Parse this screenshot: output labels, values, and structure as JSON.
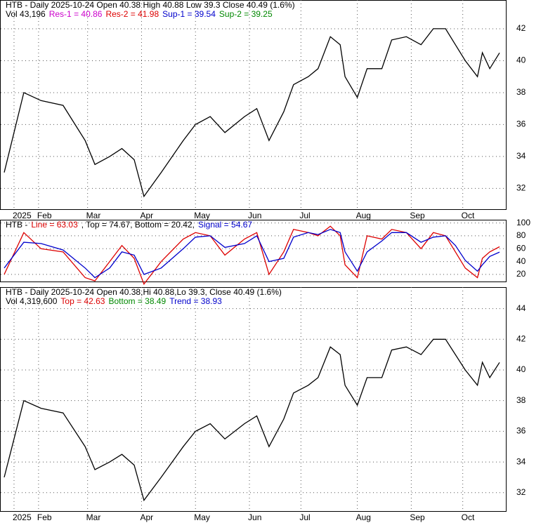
{
  "chart_data": [
    {
      "type": "line",
      "legend_lines": [
        [
          {
            "text": "HTB - Daily 2025-10-24 Open 40.38  High 40.88  Low 39.3  Close 40.49 (1.6%)",
            "color": "#000000"
          }
        ],
        [
          {
            "text": "Vol 43,196",
            "color": "#000000"
          },
          {
            "text": "Res-1 = 40.86",
            "color": "#cc00cc"
          },
          {
            "text": "Res-2 = 41.98",
            "color": "#dd0000"
          },
          {
            "text": "Sup-1 = 39.54",
            "color": "#0000cc"
          },
          {
            "text": "Sup-2 = 39.25",
            "color": "#008800"
          }
        ]
      ],
      "x": [
        0,
        8,
        15,
        24,
        33,
        37,
        43,
        48,
        53,
        57,
        64,
        73,
        78,
        84,
        90,
        98,
        103,
        108,
        114,
        118,
        124,
        128,
        133,
        137,
        139,
        144,
        148,
        154,
        158,
        164,
        170,
        175,
        180,
        184,
        188,
        193,
        195,
        198,
        202
      ],
      "series": [
        {
          "name": "HTB",
          "color": "#000000",
          "values": [
            33,
            38,
            37.5,
            37.2,
            35,
            33.5,
            34,
            34.5,
            33.8,
            31.5,
            33,
            35,
            36,
            36.5,
            35.5,
            36.5,
            37,
            35,
            36.8,
            38.5,
            39,
            39.5,
            41.5,
            41,
            39,
            37.7,
            39.5,
            39.5,
            41.3,
            41.5,
            41,
            42,
            42,
            41,
            40,
            39,
            40.5,
            39.5,
            40.49
          ]
        }
      ],
      "xlim": [
        0,
        204
      ],
      "xticks": [
        {
          "value": 4,
          "label": "2025"
        },
        {
          "value": 14,
          "label": "Feb"
        },
        {
          "value": 34,
          "label": "Mar"
        },
        {
          "value": 56,
          "label": "Apr"
        },
        {
          "value": 78,
          "label": "May"
        },
        {
          "value": 100,
          "label": "Jun"
        },
        {
          "value": 121,
          "label": "Jul"
        },
        {
          "value": 144,
          "label": "Aug"
        },
        {
          "value": 166,
          "label": "Sep"
        },
        {
          "value": 187,
          "label": "Oct"
        }
      ],
      "ylim": [
        30.7,
        43.8
      ],
      "yticks": [
        32,
        34,
        36,
        38,
        40,
        42
      ],
      "grid": true
    },
    {
      "type": "line",
      "legend_lines": [
        [
          {
            "text": "HTB - ",
            "color": "#000000"
          },
          {
            "text": "Line = 63.03",
            "color": "#dd0000"
          },
          {
            "text": ", Top = 74.67, Bottom = 20.42, ",
            "color": "#000000"
          },
          {
            "text": "Signal = 54.67",
            "color": "#0000cc"
          }
        ]
      ],
      "x": [
        0,
        8,
        15,
        24,
        33,
        37,
        43,
        48,
        53,
        57,
        64,
        73,
        78,
        84,
        90,
        98,
        103,
        108,
        114,
        118,
        124,
        128,
        133,
        137,
        139,
        144,
        148,
        154,
        158,
        164,
        170,
        175,
        180,
        184,
        188,
        193,
        195,
        198,
        202
      ],
      "series": [
        {
          "name": "Line",
          "color": "#dd0000",
          "values": [
            20,
            85,
            60,
            55,
            15,
            10,
            40,
            65,
            45,
            5,
            40,
            75,
            85,
            80,
            50,
            75,
            85,
            20,
            55,
            90,
            85,
            80,
            95,
            80,
            35,
            15,
            80,
            75,
            90,
            85,
            60,
            85,
            80,
            55,
            30,
            15,
            45,
            55,
            63.03
          ]
        },
        {
          "name": "Signal",
          "color": "#0000cc",
          "values": [
            30,
            70,
            68,
            58,
            30,
            15,
            30,
            55,
            50,
            20,
            30,
            60,
            78,
            80,
            62,
            68,
            80,
            40,
            45,
            78,
            85,
            82,
            90,
            85,
            55,
            25,
            55,
            72,
            85,
            85,
            70,
            78,
            80,
            65,
            42,
            25,
            35,
            48,
            54.67
          ]
        }
      ],
      "xlim": [
        0,
        204
      ],
      "ylim": [
        9,
        105
      ],
      "yticks": [
        20,
        40,
        60,
        80,
        100
      ],
      "grid": true
    },
    {
      "type": "line",
      "legend_lines": [
        [
          {
            "text": "HTB - Daily 2025-10-24 Open 40.38,Hi 40.88,Lo 39.3, Close 40.49 (1.6%)",
            "color": "#000000"
          }
        ],
        [
          {
            "text": "Vol 4,319,600",
            "color": "#000000"
          },
          {
            "text": "Top = 42.63",
            "color": "#dd0000"
          },
          {
            "text": "Bottom = 38.49",
            "color": "#008800"
          },
          {
            "text": "Trend = 38.93",
            "color": "#0000cc"
          }
        ]
      ],
      "x": [
        0,
        8,
        15,
        24,
        33,
        37,
        43,
        48,
        53,
        57,
        64,
        73,
        78,
        84,
        90,
        98,
        103,
        108,
        114,
        118,
        124,
        128,
        133,
        137,
        139,
        144,
        148,
        154,
        158,
        164,
        170,
        175,
        180,
        184,
        188,
        193,
        195,
        198,
        202
      ],
      "series": [
        {
          "name": "HTB",
          "color": "#000000",
          "values": [
            33,
            38,
            37.5,
            37.2,
            35,
            33.5,
            34,
            34.5,
            33.8,
            31.5,
            33,
            35,
            36,
            36.5,
            35.5,
            36.5,
            37,
            35,
            36.8,
            38.5,
            39,
            39.5,
            41.5,
            41,
            39,
            37.7,
            39.5,
            39.5,
            41.3,
            41.5,
            41,
            42,
            42,
            41,
            40,
            39,
            40.5,
            39.5,
            40.49
          ]
        }
      ],
      "xlim": [
        0,
        204
      ],
      "xticks": [
        {
          "value": 4,
          "label": "2025"
        },
        {
          "value": 14,
          "label": "Feb"
        },
        {
          "value": 34,
          "label": "Mar"
        },
        {
          "value": 56,
          "label": "Apr"
        },
        {
          "value": 78,
          "label": "May"
        },
        {
          "value": 100,
          "label": "Jun"
        },
        {
          "value": 121,
          "label": "Jul"
        },
        {
          "value": 144,
          "label": "Aug"
        },
        {
          "value": 166,
          "label": "Sep"
        },
        {
          "value": 187,
          "label": "Oct"
        }
      ],
      "ylim": [
        30.8,
        45.4
      ],
      "yticks": [
        32,
        34,
        36,
        38,
        40,
        42,
        44
      ],
      "grid": true
    }
  ]
}
